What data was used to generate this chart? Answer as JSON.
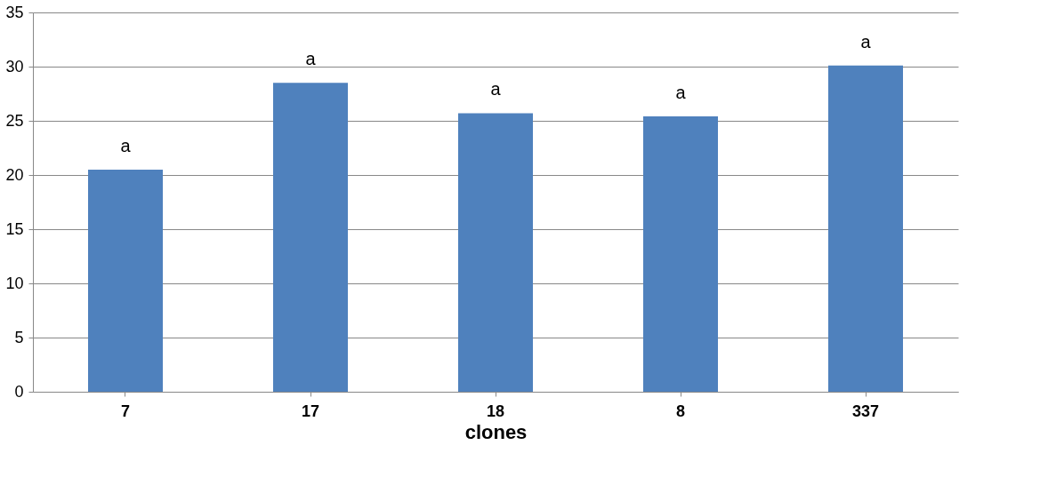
{
  "chart_data": {
    "type": "bar",
    "xlabel": "clones",
    "categories": [
      "7",
      "17",
      "18",
      "8",
      "337"
    ],
    "values": [
      20.5,
      28.5,
      25.7,
      25.4,
      30.1
    ],
    "color": "#4f81bd",
    "ylim": [
      0,
      35
    ],
    "yticks": [
      0,
      5,
      10,
      15,
      20,
      25,
      30,
      35
    ],
    "grid": "y",
    "annotations": [
      {
        "text": "a",
        "x": "7",
        "y": 20.5
      },
      {
        "text": "a",
        "x": "17",
        "y": 28.5
      },
      {
        "text": "a",
        "x": "18",
        "y": 25.7
      },
      {
        "text": "a",
        "x": "8",
        "y": 25.4
      },
      {
        "text": "a",
        "x": "337",
        "y": 30.1
      }
    ]
  }
}
